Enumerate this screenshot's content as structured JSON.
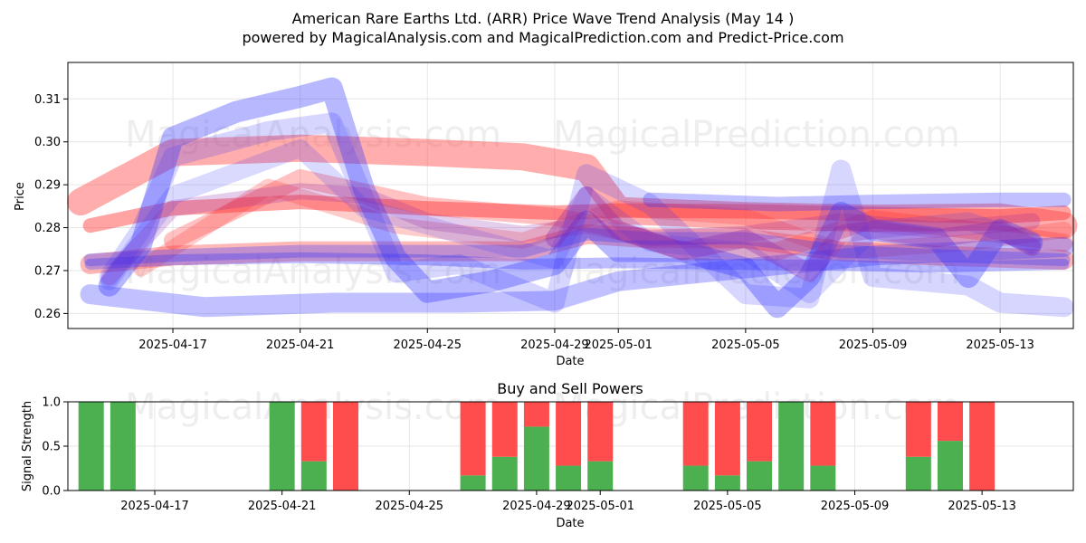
{
  "chart_data": [
    {
      "type": "line",
      "title": "American Rare Earths Ltd. (ARR) Price Wave Trend Analysis (May 14 )",
      "subtitle": "powered by MagicalAnalysis.com and MagicalPrediction.com and Predict-Price.com",
      "xlabel": "Date",
      "ylabel": "Price",
      "x_range_days": [
        -0.3,
        31.3
      ],
      "ylim": [
        0.2565,
        0.3185
      ],
      "x_ticks": [
        {
          "day": 3,
          "label": "2025-04-17"
        },
        {
          "day": 7,
          "label": "2025-04-21"
        },
        {
          "day": 11,
          "label": "2025-04-25"
        },
        {
          "day": 15,
          "label": "2025-04-29"
        },
        {
          "day": 17,
          "label": "2025-05-01"
        },
        {
          "day": 21,
          "label": "2025-05-05"
        },
        {
          "day": 25,
          "label": "2025-05-09"
        },
        {
          "day": 29,
          "label": "2025-05-13"
        }
      ],
      "y_ticks": [
        {
          "value": 0.26,
          "label": "0.26"
        },
        {
          "value": 0.27,
          "label": "0.27"
        },
        {
          "value": 0.28,
          "label": "0.28"
        },
        {
          "value": 0.29,
          "label": "0.29"
        },
        {
          "value": 0.3,
          "label": "0.30"
        },
        {
          "value": 0.31,
          "label": "0.31"
        }
      ],
      "grid": true,
      "series": [
        {
          "name": "red-wave-1",
          "color": "#ff3333",
          "opacity": 0.4,
          "width": 30,
          "points": [
            [
              0.1,
              0.286
            ],
            [
              3,
              0.2975
            ],
            [
              7,
              0.2985
            ],
            [
              11,
              0.2975
            ],
            [
              14,
              0.2965
            ],
            [
              16,
              0.294
            ],
            [
              17,
              0.284
            ],
            [
              21,
              0.2828
            ],
            [
              25,
              0.2822
            ],
            [
              29,
              0.2825
            ],
            [
              31,
              0.2805
            ]
          ]
        },
        {
          "name": "red-wave-2",
          "color": "#ff3333",
          "opacity": 0.45,
          "width": 16,
          "points": [
            [
              0.4,
              0.2805
            ],
            [
              3,
              0.2845
            ],
            [
              7,
              0.286
            ],
            [
              11,
              0.2845
            ],
            [
              15,
              0.2835
            ],
            [
              17,
              0.284
            ],
            [
              21,
              0.2838
            ],
            [
              25,
              0.2832
            ],
            [
              29,
              0.2826
            ],
            [
              31,
              0.2835
            ]
          ]
        },
        {
          "name": "red-wave-3",
          "color": "#ff3333",
          "opacity": 0.35,
          "width": 22,
          "points": [
            [
              0.4,
              0.2715
            ],
            [
              3,
              0.2735
            ],
            [
              7,
              0.2745
            ],
            [
              11,
              0.2745
            ],
            [
              14,
              0.2745
            ],
            [
              16,
              0.2785
            ],
            [
              18,
              0.2775
            ],
            [
              21,
              0.2775
            ],
            [
              24,
              0.2745
            ],
            [
              27,
              0.2735
            ],
            [
              31,
              0.2725
            ]
          ]
        },
        {
          "name": "red-wave-4",
          "color": "#ff3333",
          "opacity": 0.3,
          "width": 20,
          "points": [
            [
              3,
              0.277
            ],
            [
              7,
              0.2915
            ],
            [
              11,
              0.285
            ],
            [
              15,
              0.2825
            ],
            [
              16.5,
              0.2805
            ],
            [
              19,
              0.2745
            ],
            [
              22,
              0.2745
            ],
            [
              25,
              0.282
            ],
            [
              28,
              0.2795
            ],
            [
              31,
              0.2765
            ]
          ]
        },
        {
          "name": "red-wave-5",
          "color": "#ff3333",
          "opacity": 0.25,
          "width": 18,
          "points": [
            [
              2,
              0.2705
            ],
            [
              6,
              0.2895
            ],
            [
              10,
              0.2805
            ],
            [
              14,
              0.277
            ],
            [
              17,
              0.2845
            ],
            [
              21,
              0.2825
            ],
            [
              24,
              0.2745
            ],
            [
              28,
              0.2765
            ],
            [
              31,
              0.2795
            ]
          ]
        },
        {
          "name": "blue-wave-1",
          "color": "#3333ff",
          "opacity": 0.3,
          "width": 22,
          "points": [
            [
              0.4,
              0.2645
            ],
            [
              4,
              0.2615
            ],
            [
              8,
              0.2625
            ],
            [
              12,
              0.2625
            ],
            [
              15,
              0.263
            ],
            [
              17,
              0.2675
            ],
            [
              21,
              0.2705
            ],
            [
              25,
              0.2735
            ],
            [
              31,
              0.2755
            ]
          ]
        },
        {
          "name": "blue-wave-2",
          "color": "#3333ff",
          "opacity": 0.32,
          "width": 12,
          "points": [
            [
              0.4,
              0.2715
            ],
            [
              3,
              0.2725
            ],
            [
              7,
              0.273
            ],
            [
              11,
              0.2725
            ],
            [
              14,
              0.2715
            ],
            [
              17,
              0.2718
            ],
            [
              21,
              0.2714
            ],
            [
              24,
              0.2712
            ],
            [
              27,
              0.2708
            ],
            [
              31,
              0.2715
            ]
          ]
        },
        {
          "name": "blue-wave-3",
          "color": "#3333ff",
          "opacity": 0.3,
          "width": 14,
          "points": [
            [
              0.4,
              0.2725
            ],
            [
              3,
              0.2735
            ],
            [
              7,
              0.2745
            ],
            [
              11,
              0.2745
            ],
            [
              14,
              0.2745
            ],
            [
              16,
              0.2785
            ],
            [
              18,
              0.2775
            ],
            [
              21,
              0.2775
            ],
            [
              24,
              0.2745
            ],
            [
              27,
              0.2735
            ],
            [
              31,
              0.2725
            ]
          ]
        },
        {
          "name": "blue-wave-4",
          "color": "#3333ff",
          "opacity": 0.3,
          "width": 16,
          "points": [
            [
              18,
              0.2865
            ],
            [
              22,
              0.2855
            ],
            [
              25,
              0.286
            ],
            [
              29,
              0.2865
            ],
            [
              31,
              0.2865
            ]
          ]
        },
        {
          "name": "blue-wave-5",
          "color": "#3333ff",
          "opacity": 0.35,
          "width": 24,
          "points": [
            [
              1,
              0.2665
            ],
            [
              2,
              0.276
            ],
            [
              3,
              0.301
            ],
            [
              5,
              0.307
            ],
            [
              7,
              0.3105
            ],
            [
              8,
              0.3125
            ],
            [
              9,
              0.289
            ],
            [
              10,
              0.273
            ],
            [
              11,
              0.265
            ],
            [
              13,
              0.2675
            ],
            [
              15,
              0.2715
            ],
            [
              16,
              0.2815
            ],
            [
              17,
              0.2745
            ],
            [
              19,
              0.2745
            ],
            [
              21,
              0.2705
            ],
            [
              22,
              0.2615
            ],
            [
              23,
              0.2685
            ],
            [
              24,
              0.2835
            ],
            [
              25,
              0.2795
            ],
            [
              27,
              0.2775
            ],
            [
              28,
              0.2685
            ],
            [
              29,
              0.2795
            ],
            [
              30,
              0.2765
            ]
          ]
        },
        {
          "name": "blue-wave-6",
          "color": "#3333ff",
          "opacity": 0.2,
          "width": 22,
          "points": [
            [
              1,
              0.2685
            ],
            [
              2,
              0.2795
            ],
            [
              3,
              0.2965
            ],
            [
              6,
              0.3025
            ],
            [
              8,
              0.3045
            ],
            [
              10,
              0.2695
            ],
            [
              12,
              0.2715
            ],
            [
              15,
              0.2625
            ],
            [
              16,
              0.2925
            ],
            [
              18,
              0.2855
            ],
            [
              21,
              0.2645
            ],
            [
              23,
              0.2635
            ],
            [
              24,
              0.2935
            ],
            [
              25,
              0.2685
            ],
            [
              28,
              0.2665
            ],
            [
              29,
              0.2625
            ],
            [
              31,
              0.2615
            ]
          ]
        },
        {
          "name": "blue-wave-7",
          "color": "#3333ff",
          "opacity": 0.18,
          "width": 20,
          "points": [
            [
              1,
              0.2675
            ],
            [
              3,
              0.2875
            ],
            [
              7,
              0.2985
            ],
            [
              9,
              0.2845
            ],
            [
              12,
              0.2785
            ],
            [
              15,
              0.2725
            ],
            [
              16,
              0.2875
            ],
            [
              18,
              0.2765
            ],
            [
              21,
              0.2745
            ],
            [
              23,
              0.2645
            ],
            [
              25,
              0.2795
            ],
            [
              28,
              0.2815
            ],
            [
              30,
              0.2765
            ]
          ]
        },
        {
          "name": "purple-wave-1",
          "color": "#8822aa",
          "opacity": 0.32,
          "width": 20,
          "points": [
            [
              15,
              0.2775
            ],
            [
              16,
              0.2875
            ],
            [
              17,
              0.2795
            ],
            [
              19,
              0.2745
            ],
            [
              21,
              0.2775
            ],
            [
              23,
              0.2695
            ],
            [
              24,
              0.2785
            ],
            [
              25,
              0.2795
            ],
            [
              27,
              0.2775
            ],
            [
              29,
              0.2795
            ],
            [
              30,
              0.2755
            ]
          ]
        },
        {
          "name": "purple-wave-2",
          "color": "#8822aa",
          "opacity": 0.22,
          "width": 18,
          "points": [
            [
              1,
              0.2685
            ],
            [
              3,
              0.2845
            ],
            [
              7,
              0.2885
            ],
            [
              9,
              0.2875
            ],
            [
              11,
              0.2815
            ],
            [
              14,
              0.2785
            ],
            [
              16,
              0.2805
            ],
            [
              18,
              0.2775
            ],
            [
              21,
              0.2785
            ],
            [
              24,
              0.2815
            ],
            [
              27,
              0.2795
            ],
            [
              30,
              0.2815
            ]
          ]
        }
      ]
    },
    {
      "type": "bar",
      "title": "Buy and Sell Powers",
      "xlabel": "Date",
      "ylabel": "Signal Strength",
      "ylim": [
        0,
        1
      ],
      "y_ticks": [
        {
          "value": 0,
          "label": "0.0"
        },
        {
          "value": 0.5,
          "label": "0.5"
        },
        {
          "value": 1,
          "label": "1.0"
        }
      ],
      "x_ticks": [
        {
          "day": 3,
          "label": "2025-04-17"
        },
        {
          "day": 7,
          "label": "2025-04-21"
        },
        {
          "day": 11,
          "label": "2025-04-25"
        },
        {
          "day": 15,
          "label": "2025-04-29"
        },
        {
          "day": 17,
          "label": "2025-05-01"
        },
        {
          "day": 21,
          "label": "2025-05-05"
        },
        {
          "day": 25,
          "label": "2025-05-09"
        },
        {
          "day": 29,
          "label": "2025-05-13"
        }
      ],
      "buy_color": "#4caf50",
      "sell_color": "#ff4c4c",
      "bars": [
        {
          "day": 1,
          "buy": 1.0
        },
        {
          "day": 2,
          "buy": 1.0
        },
        {
          "day": 7,
          "buy": 1.0
        },
        {
          "day": 8,
          "buy": 0.33
        },
        {
          "day": 9,
          "buy": 0.0
        },
        {
          "day": 13,
          "buy": 0.17
        },
        {
          "day": 14,
          "buy": 0.38
        },
        {
          "day": 15,
          "buy": 0.72
        },
        {
          "day": 16,
          "buy": 0.28
        },
        {
          "day": 17,
          "buy": 0.33
        },
        {
          "day": 20,
          "buy": 0.28
        },
        {
          "day": 21,
          "buy": 0.17
        },
        {
          "day": 22,
          "buy": 0.33
        },
        {
          "day": 23,
          "buy": 1.0
        },
        {
          "day": 24,
          "buy": 0.28
        },
        {
          "day": 27,
          "buy": 0.38
        },
        {
          "day": 28,
          "buy": 0.56
        },
        {
          "day": 29,
          "buy": 0.0
        }
      ]
    }
  ],
  "watermarks": [
    "MagicalAnalysis.com",
    "MagicalPrediction.com",
    "MagicalAnalysis.com",
    "MagicalPrediction.com",
    "MagicalAnalysis.com",
    "MagicalPrediction.com"
  ]
}
